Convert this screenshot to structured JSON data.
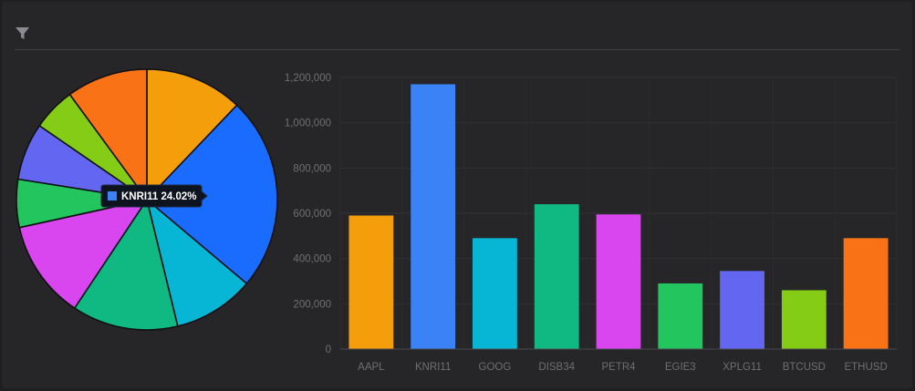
{
  "toolbar": {
    "filter_icon": "filter-icon"
  },
  "chart_data": [
    {
      "type": "pie",
      "categories": [
        "AAPL",
        "KNRI11",
        "GOOG",
        "DISB34",
        "PETR4",
        "EGIE3",
        "XPLG11",
        "BTCUSD",
        "ETHUSD"
      ],
      "values": [
        590000,
        1170000,
        490000,
        640000,
        595000,
        290000,
        345000,
        260000,
        490000
      ],
      "colors": [
        "#f59e0b",
        "#1a6cff",
        "#06b6d4",
        "#10b981",
        "#d946ef",
        "#22c55e",
        "#6366f1",
        "#84cc16",
        "#f97316"
      ],
      "tooltip": {
        "category": "KNRI11",
        "color": "#3b82f6",
        "label": "KNRI11 24.02%"
      }
    },
    {
      "type": "bar",
      "categories": [
        "AAPL",
        "KNRI11",
        "GOOG",
        "DISB34",
        "PETR4",
        "EGIE3",
        "XPLG11",
        "BTCUSD",
        "ETHUSD"
      ],
      "values": [
        590000,
        1170000,
        490000,
        640000,
        595000,
        290000,
        345000,
        260000,
        490000
      ],
      "colors": [
        "#f59e0b",
        "#3b82f6",
        "#06b6d4",
        "#10b981",
        "#d946ef",
        "#22c55e",
        "#6366f1",
        "#84cc16",
        "#f97316"
      ],
      "ylim": [
        0,
        1200000
      ],
      "yticks": [
        "0",
        "200,000",
        "400,000",
        "600,000",
        "800,000",
        "1,000,000",
        "1,200,000"
      ],
      "grid": true
    }
  ]
}
